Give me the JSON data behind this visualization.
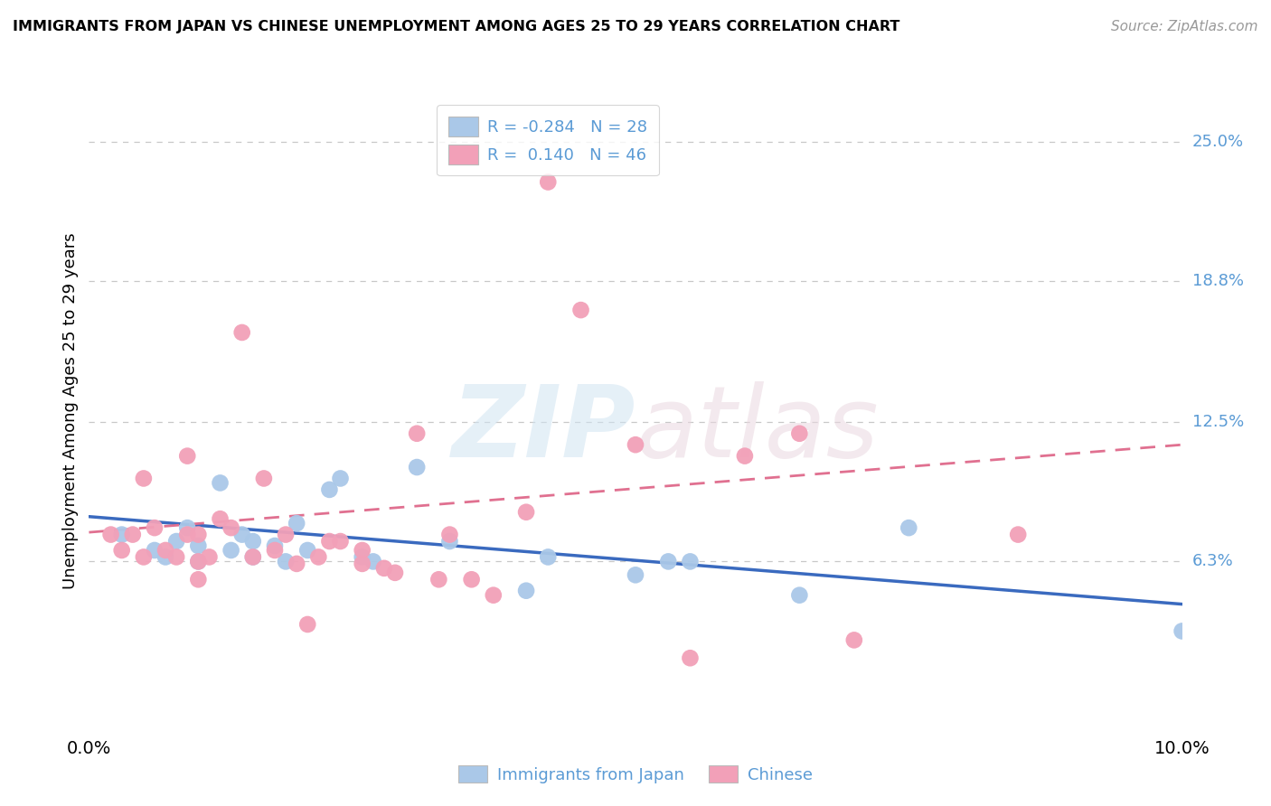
{
  "title": "IMMIGRANTS FROM JAPAN VS CHINESE UNEMPLOYMENT AMONG AGES 25 TO 29 YEARS CORRELATION CHART",
  "source": "Source: ZipAtlas.com",
  "ylabel": "Unemployment Among Ages 25 to 29 years",
  "ytick_labels": [
    "25.0%",
    "18.8%",
    "12.5%",
    "6.3%"
  ],
  "ytick_values": [
    0.25,
    0.188,
    0.125,
    0.063
  ],
  "xlim": [
    0.0,
    0.1
  ],
  "ylim": [
    -0.01,
    0.27
  ],
  "color_japan": "#aac8e8",
  "color_chinese": "#f2a0b8",
  "color_japan_line": "#3a6abf",
  "color_chinese_line": "#e07090",
  "color_label_blue": "#5b9bd5",
  "color_grid": "#c8c8c8",
  "japan_scatter_x": [
    0.003,
    0.006,
    0.007,
    0.008,
    0.009,
    0.01,
    0.01,
    0.012,
    0.013,
    0.014,
    0.015,
    0.015,
    0.017,
    0.018,
    0.019,
    0.02,
    0.022,
    0.023,
    0.025,
    0.026,
    0.03,
    0.033,
    0.04,
    0.042,
    0.05,
    0.053,
    0.055,
    0.065,
    0.075,
    0.1
  ],
  "japan_scatter_y": [
    0.075,
    0.068,
    0.065,
    0.072,
    0.078,
    0.07,
    0.063,
    0.098,
    0.068,
    0.075,
    0.065,
    0.072,
    0.07,
    0.063,
    0.08,
    0.068,
    0.095,
    0.1,
    0.065,
    0.063,
    0.105,
    0.072,
    0.05,
    0.065,
    0.057,
    0.063,
    0.063,
    0.048,
    0.078,
    0.032
  ],
  "chinese_scatter_x": [
    0.002,
    0.003,
    0.004,
    0.005,
    0.005,
    0.006,
    0.007,
    0.008,
    0.009,
    0.009,
    0.01,
    0.01,
    0.01,
    0.011,
    0.012,
    0.013,
    0.014,
    0.015,
    0.016,
    0.017,
    0.018,
    0.019,
    0.02,
    0.021,
    0.022,
    0.023,
    0.025,
    0.025,
    0.027,
    0.028,
    0.03,
    0.032,
    0.033,
    0.035,
    0.037,
    0.04,
    0.042,
    0.045,
    0.05,
    0.055,
    0.06,
    0.065,
    0.07,
    0.085
  ],
  "chinese_scatter_y": [
    0.075,
    0.068,
    0.075,
    0.1,
    0.065,
    0.078,
    0.068,
    0.065,
    0.11,
    0.075,
    0.075,
    0.063,
    0.055,
    0.065,
    0.082,
    0.078,
    0.165,
    0.065,
    0.1,
    0.068,
    0.075,
    0.062,
    0.035,
    0.065,
    0.072,
    0.072,
    0.068,
    0.062,
    0.06,
    0.058,
    0.12,
    0.055,
    0.075,
    0.055,
    0.048,
    0.085,
    0.232,
    0.175,
    0.115,
    0.02,
    0.11,
    0.12,
    0.028,
    0.075
  ],
  "japan_trend_x0": 0.0,
  "japan_trend_x1": 0.1,
  "japan_trend_y0": 0.083,
  "japan_trend_y1": 0.044,
  "chinese_trend_x0": 0.0,
  "chinese_trend_x1": 0.1,
  "chinese_trend_y0": 0.076,
  "chinese_trend_y1": 0.115
}
